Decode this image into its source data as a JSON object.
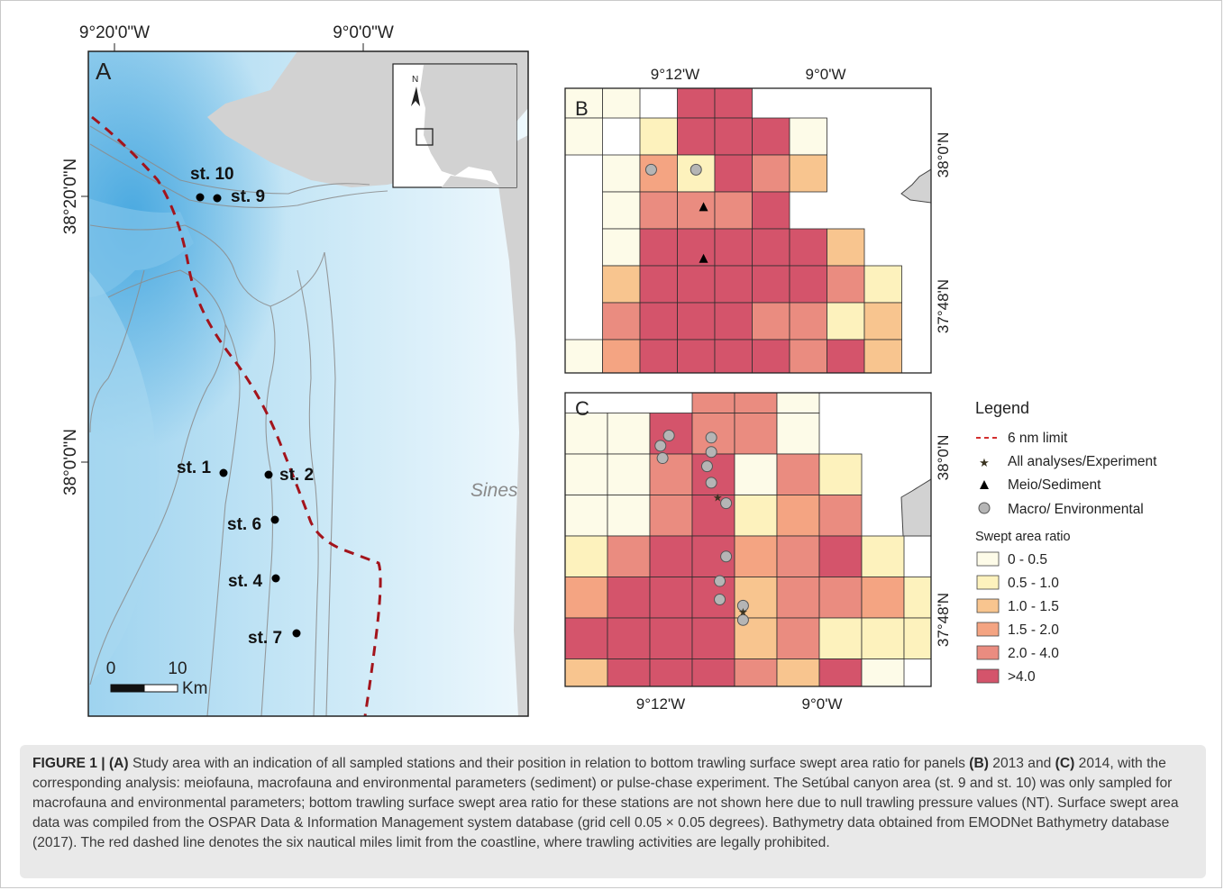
{
  "panel_a": {
    "letter": "A",
    "lon_labels": [
      "9°20'0\"W",
      "9°0'0\"W"
    ],
    "lat_labels": [
      "38°20'0\"N",
      "38°0'0\"N"
    ],
    "place_label": "Sines",
    "north_label": "N",
    "scale_bar": {
      "zero": "0",
      "ten": "10",
      "unit": "Km"
    },
    "stations": [
      {
        "id": "st10",
        "label": "st. 10"
      },
      {
        "id": "st9",
        "label": "st. 9"
      },
      {
        "id": "st1",
        "label": "st. 1"
      },
      {
        "id": "st2",
        "label": "st. 2"
      },
      {
        "id": "st6",
        "label": "st. 6"
      },
      {
        "id": "st4",
        "label": "st. 4"
      },
      {
        "id": "st7",
        "label": "st. 7"
      }
    ],
    "colors": {
      "ocean_deep": "#5ab4e4",
      "ocean_shelf": "#e4f3fb",
      "land": "#d2d2d2",
      "contour": "#8c8c8c",
      "limit_line": "#a3141c"
    }
  },
  "panel_b": {
    "letter": "B",
    "lon_labels": [
      "9°12'W",
      "9°0'W"
    ],
    "lat_labels": [
      "38°0'N",
      "37°48'N"
    ],
    "cells": [
      [
        0,
        0,
        -1,
        5,
        5,
        -1,
        -1,
        -1,
        -1
      ],
      [
        0,
        -1,
        1,
        5,
        5,
        5,
        0,
        -1,
        -1
      ],
      [
        -1,
        0,
        3,
        1,
        5,
        4,
        2,
        -1,
        -1
      ],
      [
        -1,
        0,
        4,
        4,
        4,
        5,
        -1,
        -1,
        -1
      ],
      [
        -1,
        0,
        5,
        5,
        5,
        5,
        5,
        2,
        -1
      ],
      [
        -1,
        2,
        5,
        5,
        5,
        5,
        5,
        4,
        1
      ],
      [
        -1,
        4,
        5,
        5,
        5,
        4,
        4,
        1,
        2
      ],
      [
        0,
        3,
        5,
        5,
        5,
        5,
        4,
        5,
        2
      ]
    ],
    "markers": [
      {
        "type": "circle",
        "col": 2.3,
        "row": 2.4
      },
      {
        "type": "circle",
        "col": 3.5,
        "row": 2.4
      },
      {
        "type": "triangle",
        "col": 3.7,
        "row": 3.4
      },
      {
        "type": "triangle",
        "col": 3.7,
        "row": 4.8
      }
    ]
  },
  "panel_c": {
    "letter": "C",
    "lon_labels": [
      "9°12'W",
      "9°0'W"
    ],
    "lat_labels": [
      "38°0'N",
      "37°48'N"
    ],
    "cells": [
      [
        -1,
        -1,
        -1,
        4,
        4,
        0,
        -1,
        -1,
        -1
      ],
      [
        0,
        0,
        5,
        4,
        4,
        0,
        -1,
        -1,
        -1
      ],
      [
        0,
        0,
        4,
        5,
        0,
        4,
        1,
        -1,
        -1
      ],
      [
        0,
        0,
        4,
        5,
        1,
        3,
        4,
        -1,
        -1
      ],
      [
        1,
        4,
        5,
        5,
        3,
        4,
        5,
        1,
        -1
      ],
      [
        3,
        5,
        5,
        5,
        2,
        4,
        4,
        3,
        1
      ],
      [
        5,
        5,
        5,
        5,
        2,
        4,
        1,
        1,
        1
      ],
      [
        2,
        5,
        5,
        5,
        4,
        2,
        5,
        0,
        -1
      ]
    ],
    "markers": [
      {
        "type": "circle",
        "col": 2.45,
        "row": 1.55
      },
      {
        "type": "circle",
        "col": 2.25,
        "row": 1.8
      },
      {
        "type": "circle",
        "col": 2.3,
        "row": 2.1
      },
      {
        "type": "circle",
        "col": 3.45,
        "row": 1.6
      },
      {
        "type": "circle",
        "col": 3.45,
        "row": 1.95
      },
      {
        "type": "circle",
        "col": 3.35,
        "row": 2.3
      },
      {
        "type": "circle",
        "col": 3.45,
        "row": 2.7
      },
      {
        "type": "circle",
        "col": 3.8,
        "row": 3.2
      },
      {
        "type": "circle",
        "col": 3.8,
        "row": 4.5
      },
      {
        "type": "circle",
        "col": 3.65,
        "row": 5.1
      },
      {
        "type": "circle",
        "col": 3.65,
        "row": 5.55
      },
      {
        "type": "circle",
        "col": 4.2,
        "row": 5.7
      },
      {
        "type": "circle",
        "col": 4.2,
        "row": 6.05
      },
      {
        "type": "star",
        "col": 3.6,
        "row": 3.05
      },
      {
        "type": "star",
        "col": 4.2,
        "row": 5.85
      }
    ]
  },
  "legend": {
    "title": "Legend",
    "items": [
      {
        "symbol": "dashed-line",
        "label": "6 nm limit"
      },
      {
        "symbol": "star",
        "label": "All analyses/Experiment"
      },
      {
        "symbol": "triangle",
        "label": "Meio/Sediment"
      },
      {
        "symbol": "circle",
        "label": "Macro/ Environmental"
      }
    ],
    "ratio_title": "Swept area ratio",
    "classes": [
      {
        "label": "0 - 0.5",
        "color": "#fdfbe8"
      },
      {
        "label": "0.5 - 1.0",
        "color": "#fdf2bd"
      },
      {
        "label": "1.0 - 1.5",
        "color": "#f8c58f"
      },
      {
        "label": "1.5 - 2.0",
        "color": "#f4a482"
      },
      {
        "label": "2.0 - 4.0",
        "color": "#ea8c80"
      },
      {
        "label": ">4.0",
        "color": "#d4546b"
      }
    ]
  },
  "caption": {
    "fig_label": "FIGURE 1 | ",
    "panel_a": "(A)",
    "part1": " Study area with an indication of all sampled stations and their position in relation to bottom trawling surface swept area ratio for panels ",
    "panel_b": "(B)",
    "part2": " 2013 and ",
    "panel_c": "(C)",
    "part3": " 2014, with the corresponding analysis: meiofauna, macrofauna and environmental parameters (sediment) or pulse-chase experiment. The Setúbal canyon area (st. 9 and st. 10) was only sampled for macrofauna and environmental parameters; bottom trawling surface swept area ratio for these stations are not shown here due to null trawling pressure values (NT). Surface swept area data was compiled from the OSPAR Data & Information Management system database (grid cell 0.05 × 0.05 degrees). Bathymetry data obtained from EMODNet Bathymetry database (2017). The red dashed line denotes the six nautical miles limit from the coastline, where trawling activities are legally prohibited."
  }
}
